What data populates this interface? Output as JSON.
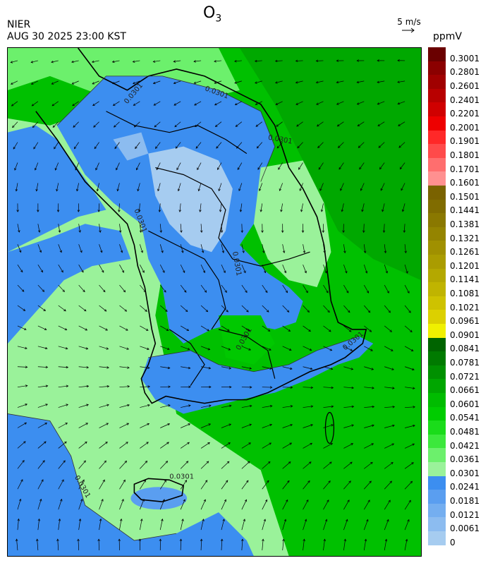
{
  "header": {
    "agency": "NIER",
    "datetime": "AUG 30 2025 23:00 KST",
    "title_main": "O",
    "title_sub": "3",
    "wind_scale_label": "5 m/s",
    "unit_label": "ppmV"
  },
  "legend": {
    "labels": [
      "0.3001",
      "0.2801",
      "0.2601",
      "0.2401",
      "0.2201",
      "0.2001",
      "0.1901",
      "0.1801",
      "0.1701",
      "0.1601",
      "0.1501",
      "0.1441",
      "0.1381",
      "0.1321",
      "0.1261",
      "0.1201",
      "0.1141",
      "0.1081",
      "0.1021",
      "0.0961",
      "0.0901",
      "0.0841",
      "0.0781",
      "0.0721",
      "0.0661",
      "0.0601",
      "0.0541",
      "0.0481",
      "0.0421",
      "0.0361",
      "0.0301",
      "0.0241",
      "0.0181",
      "0.0121",
      "0.0061",
      "0"
    ],
    "colors": [
      "#6a0000",
      "#8b0000",
      "#a00000",
      "#b80000",
      "#d00000",
      "#ee0000",
      "#ff2828",
      "#ff4a4a",
      "#ff6e6e",
      "#ff9090",
      "#7a6200",
      "#806c00",
      "#8a7800",
      "#948400",
      "#a09000",
      "#aa9c00",
      "#b4a800",
      "#c0b400",
      "#cec200",
      "#dcd000",
      "#f0f000",
      "#006400",
      "#007a00",
      "#009000",
      "#00a600",
      "#00bc00",
      "#00cc00",
      "#1adc1a",
      "#3ce83c",
      "#6cf06c",
      "#9af29a",
      "#3c8ef0",
      "#5a9ef0",
      "#74aef0",
      "#8cbcf0",
      "#a6ccf0"
    ]
  },
  "map": {
    "contour_labels": [
      "0.0301",
      "0.0301",
      "0.0301",
      "0.0301",
      "0.0301",
      "0.0301",
      "0.0301",
      "0.0301",
      "0.0301"
    ],
    "colors": {
      "sea_green": "#00c800",
      "dark_green": "#00a400",
      "light_green": "#9af29a",
      "blue": "#3c8ef0",
      "mid_blue": "#5a9ef0",
      "pale_blue": "#a6ccf0"
    }
  }
}
